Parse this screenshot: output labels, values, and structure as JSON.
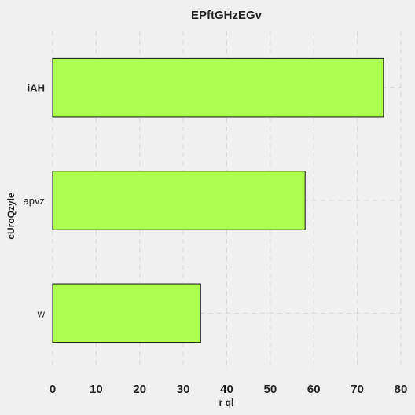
{
  "chart_data": {
    "type": "bar",
    "orientation": "horizontal",
    "title": "EPftGHzEGv",
    "xlabel": "r ql",
    "ylabel": "cUroQzyle",
    "categories": [
      "iAH",
      "apvz",
      "w"
    ],
    "values": [
      76,
      58,
      34
    ],
    "xlim": [
      0,
      80
    ],
    "xticks": [
      "0",
      "10",
      "20",
      "30",
      "40",
      "50",
      "60",
      "70",
      "80"
    ],
    "grid": true,
    "bar_color": "#adff4f",
    "bar_edge_color": "#111111",
    "background": "#f0f0f0",
    "grid_color": "#d8d8d8"
  }
}
